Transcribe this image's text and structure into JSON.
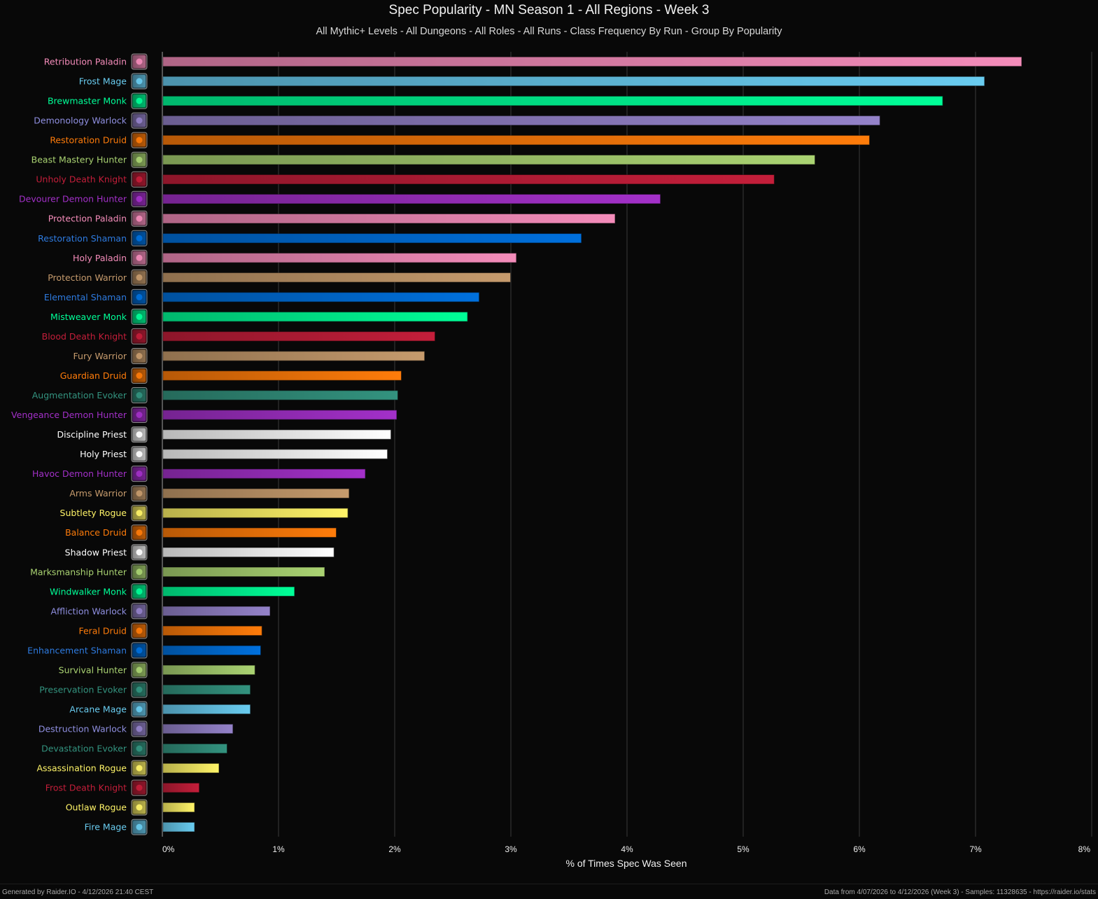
{
  "colors": {
    "background": "#080808",
    "grid": "#3a3a3a",
    "axis": "#555555"
  },
  "footer": {
    "generated": "Generated by Raider.IO - 4/12/2026 21:40 CEST",
    "data_info": "Data from 4/07/2026 to 4/12/2026 (Week 3) - Samples: 11328635 - https://raider.io/stats"
  },
  "chart_data": {
    "type": "bar",
    "orientation": "horizontal",
    "title": "Spec Popularity - MN Season 1 - All Regions - Week 3",
    "subtitle": "All Mythic+ Levels - All Dungeons - All Roles - All Runs - Class Frequency By Run - Group By Popularity",
    "xlabel": "% of Times Spec Was Seen",
    "ylabel": "",
    "xlim": [
      0,
      8
    ],
    "grid": true,
    "xticks": [
      "0%",
      "1%",
      "2%",
      "3%",
      "4%",
      "5%",
      "6%",
      "7%",
      "8%"
    ],
    "categories": [
      "Retribution Paladin",
      "Frost Mage",
      "Brewmaster Monk",
      "Demonology Warlock",
      "Restoration Druid",
      "Beast Mastery Hunter",
      "Unholy Death Knight",
      "Devourer Demon Hunter",
      "Protection Paladin",
      "Restoration Shaman",
      "Holy Paladin",
      "Protection Warrior",
      "Elemental Shaman",
      "Mistweaver Monk",
      "Blood Death Knight",
      "Fury Warrior",
      "Guardian Druid",
      "Augmentation Evoker",
      "Vengeance Demon Hunter",
      "Discipline Priest",
      "Holy Priest",
      "Havoc Demon Hunter",
      "Arms Warrior",
      "Subtlety Rogue",
      "Balance Druid",
      "Shadow Priest",
      "Marksmanship Hunter",
      "Windwalker Monk",
      "Affliction Warlock",
      "Feral Druid",
      "Enhancement Shaman",
      "Survival Hunter",
      "Preservation Evoker",
      "Arcane Mage",
      "Destruction Warlock",
      "Devastation Evoker",
      "Assassination Rogue",
      "Frost Death Knight",
      "Outlaw Rogue",
      "Fire Mage"
    ],
    "values": [
      7.39,
      7.07,
      6.71,
      6.17,
      6.08,
      5.61,
      5.26,
      4.28,
      3.89,
      3.6,
      3.04,
      2.99,
      2.72,
      2.62,
      2.34,
      2.25,
      2.05,
      2.02,
      2.01,
      1.96,
      1.93,
      1.74,
      1.6,
      1.59,
      1.49,
      1.47,
      1.39,
      1.13,
      0.92,
      0.85,
      0.84,
      0.79,
      0.75,
      0.75,
      0.6,
      0.55,
      0.48,
      0.31,
      0.27,
      0.27
    ],
    "classes": [
      "paladin",
      "mage",
      "monk",
      "warlock",
      "druid",
      "hunter",
      "deathknight",
      "demonhunter",
      "paladin",
      "shaman",
      "paladin",
      "warrior",
      "shaman",
      "monk",
      "deathknight",
      "warrior",
      "druid",
      "evoker",
      "demonhunter",
      "priest",
      "priest",
      "demonhunter",
      "warrior",
      "rogue",
      "druid",
      "priest",
      "hunter",
      "monk",
      "warlock",
      "druid",
      "shaman",
      "hunter",
      "evoker",
      "mage",
      "warlock",
      "evoker",
      "rogue",
      "deathknight",
      "rogue",
      "mage"
    ],
    "class_colors": {
      "paladin": "#F48CBA",
      "mage": "#69CCF0",
      "monk": "#00FF98",
      "warlock": "#9482C9",
      "druid": "#FF7C0A",
      "hunter": "#AAD372",
      "deathknight": "#C41E3A",
      "demonhunter": "#A330C9",
      "shaman": "#0070DD",
      "warrior": "#C69B6D",
      "evoker": "#33937F",
      "priest": "#FFFFFF",
      "rogue": "#FFF468"
    },
    "label_colors": {
      "paladin": "#F48CBA",
      "mage": "#69CCF0",
      "monk": "#00FF98",
      "warlock": "#8F8FE0",
      "druid": "#FF7C0A",
      "hunter": "#AAD372",
      "deathknight": "#C41E3A",
      "demonhunter": "#A330C9",
      "shaman": "#2E7BE0",
      "warrior": "#C69B6D",
      "evoker": "#33937F",
      "priest": "#FFFFFF",
      "rogue": "#FFF468"
    },
    "icons": [
      "retribution-icon",
      "frostbolt-icon",
      "brewmaster-icon",
      "demonology-icon",
      "restoration-druid-icon",
      "beast-mastery-icon",
      "unholy-icon",
      "devourer-icon",
      "protection-paladin-icon",
      "restoration-shaman-icon",
      "holy-paladin-icon",
      "protection-warrior-icon",
      "elemental-icon",
      "mistweaver-icon",
      "blood-icon",
      "fury-icon",
      "guardian-icon",
      "augmentation-icon",
      "vengeance-icon",
      "discipline-icon",
      "holy-priest-icon",
      "havoc-icon",
      "arms-icon",
      "subtlety-icon",
      "balance-icon",
      "shadow-priest-icon",
      "marksmanship-icon",
      "windwalker-icon",
      "affliction-icon",
      "feral-icon",
      "enhancement-icon",
      "survival-icon",
      "preservation-icon",
      "arcane-icon",
      "destruction-icon",
      "devastation-icon",
      "assassination-icon",
      "frost-dk-icon",
      "outlaw-icon",
      "fire-mage-icon"
    ]
  }
}
